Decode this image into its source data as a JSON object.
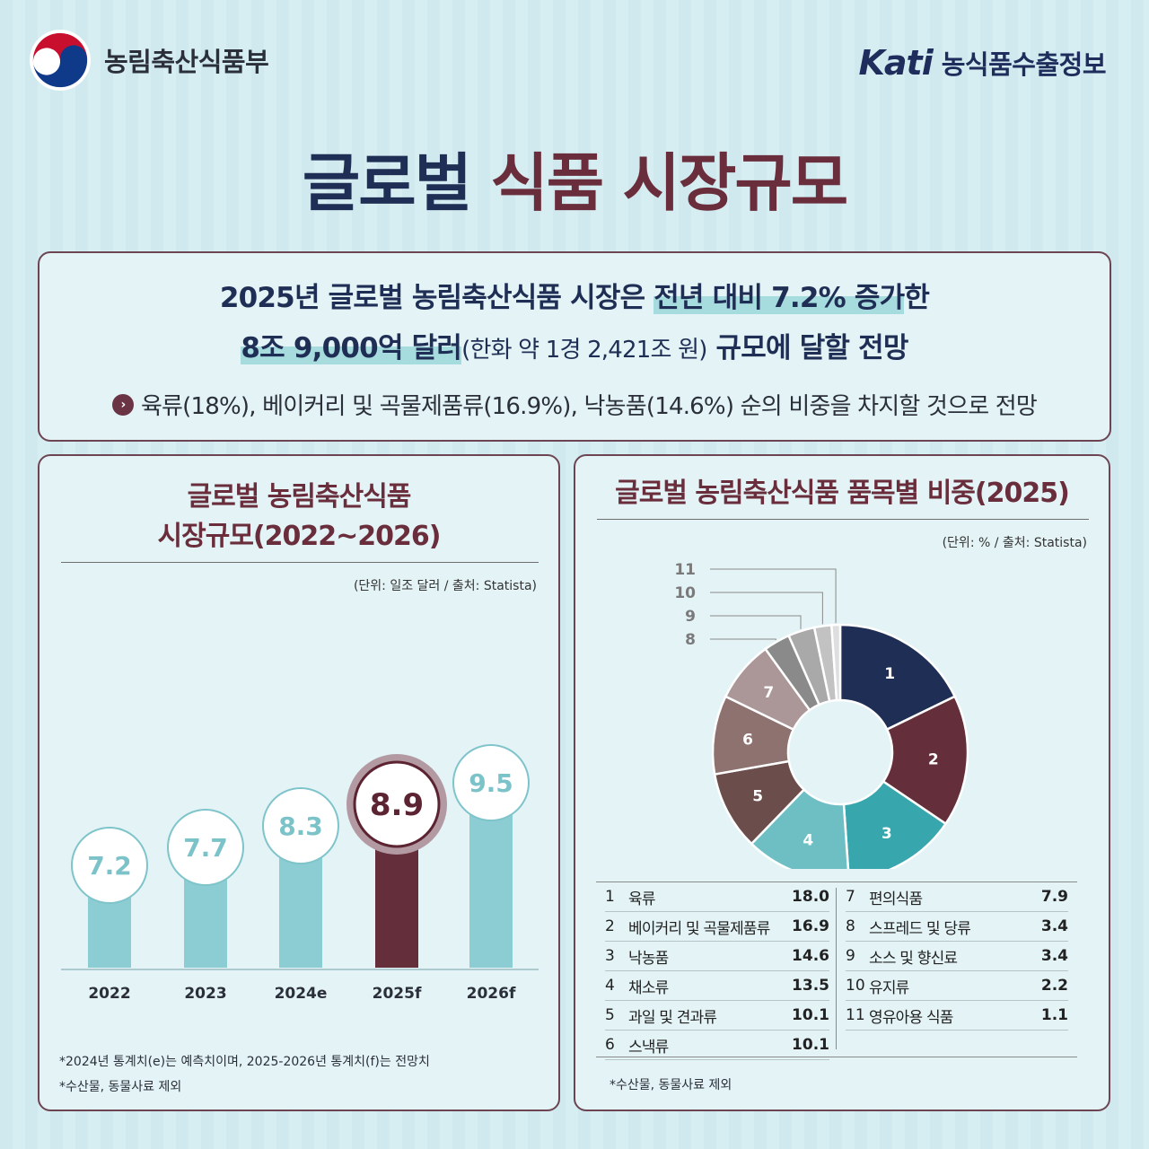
{
  "header": {
    "ministry_name": "농림축산식품부",
    "kati_logo_text": "Kati",
    "kati_name": "농식품수출정보"
  },
  "title": {
    "part1": "글로벌",
    "part2": "식품 시장규모"
  },
  "summary": {
    "line1_a": "2025년 글로벌 농림축산식품 시장은 ",
    "line1_b": "전년 대비 7.2% 증가",
    "line1_c": "한",
    "line2_a": "8조 9,000억 달러",
    "line2_b": "(한화 약 1경 2,421조 원)",
    "line2_c": " 규모에 달할 전망",
    "line3": "육류(18%),  베이커리 및 곡물제품류(16.9%), 낙농품(14.6%) 순의 비중을 차지할 것으로 전망"
  },
  "colors": {
    "navy": "#1f2e54",
    "maroon": "#6a2d3b",
    "teal_bar": "#8bcdd2",
    "highlight_bar": "#652e3b"
  },
  "chart_data": [
    {
      "type": "bar",
      "title": "글로벌 농림축산식품\n시장규모(2022~2026)",
      "title_line1": "글로벌 농림축산식품",
      "title_line2": "시장규모(2022~2026)",
      "unit_note": "(단위: 일조 달러 / 출처: Statista)",
      "categories": [
        "2022",
        "2023",
        "2024e",
        "2025f",
        "2026f"
      ],
      "values": [
        7.2,
        7.7,
        8.3,
        8.9,
        9.5
      ],
      "value_labels": [
        "7.2",
        "7.7",
        "8.3",
        "8.9",
        "9.5"
      ],
      "highlight_category": "2025f",
      "footnotes": [
        "*2024년 통계치(e)는 예측치이며, 2025-2026년 통계치(f)는 전망치",
        "*수산물, 동물사료 제외"
      ]
    },
    {
      "type": "pie",
      "title": "글로벌 농림축산식품 품목별 비중(2025)",
      "unit_note": "(단위: % / 출처: Statista)",
      "donut": true,
      "slices": [
        {
          "num": "1",
          "label": "육류",
          "value": 18.0,
          "display": "18.0",
          "color": "#1f2e54"
        },
        {
          "num": "2",
          "label": "베이커리 및 곡물제품류",
          "value": 16.9,
          "display": "16.9",
          "color": "#652e3b"
        },
        {
          "num": "3",
          "label": "낙농품",
          "value": 14.6,
          "display": "14.6",
          "color": "#38a7ad"
        },
        {
          "num": "4",
          "label": "채소류",
          "value": 13.5,
          "display": "13.5",
          "color": "#6dbfc4"
        },
        {
          "num": "5",
          "label": "과일 및 견과류",
          "value": 10.1,
          "display": "10.1",
          "color": "#6b4e4c"
        },
        {
          "num": "6",
          "label": "스낵류",
          "value": 10.1,
          "display": "10.1",
          "color": "#8d7270"
        },
        {
          "num": "7",
          "label": "편의식품",
          "value": 7.9,
          "display": "7.9",
          "color": "#ab9797"
        },
        {
          "num": "8",
          "label": "스프레드 및 당류",
          "value": 3.4,
          "display": "3.4",
          "color": "#8a8a8a"
        },
        {
          "num": "9",
          "label": "소스 및 향신료",
          "value": 3.4,
          "display": "3.4",
          "color": "#a9a9a9"
        },
        {
          "num": "10",
          "label": "유지류",
          "value": 2.2,
          "display": "2.2",
          "color": "#c2c2c2"
        },
        {
          "num": "11",
          "label": "영유아용 식품",
          "value": 1.1,
          "display": "1.1",
          "color": "#dedede"
        }
      ],
      "footnote": "*수산물, 동물사료 제외"
    }
  ]
}
